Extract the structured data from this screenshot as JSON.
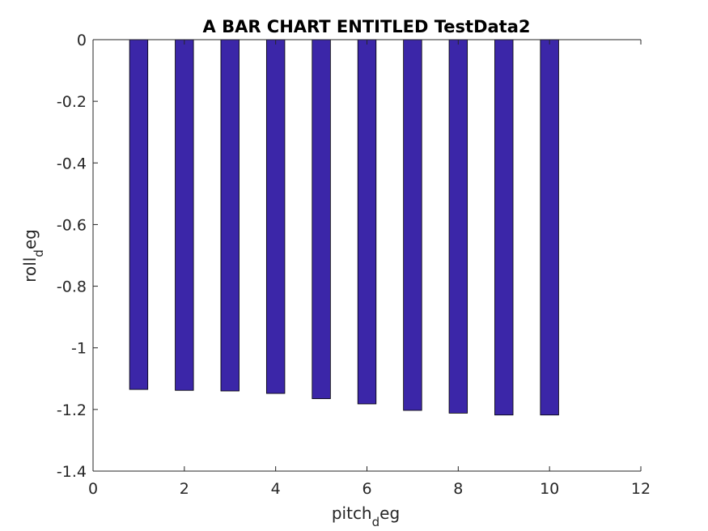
{
  "chart_data": {
    "type": "bar",
    "title": "A BAR CHART ENTITLED TestData2",
    "xlabel": {
      "main": "pitch",
      "sub": "d",
      "rest": "eg"
    },
    "ylabel": {
      "main": "roll",
      "sub": "d",
      "rest": "eg"
    },
    "x": [
      1,
      2,
      3,
      4,
      5,
      6,
      7,
      8,
      9,
      10
    ],
    "values": [
      -1.135,
      -1.138,
      -1.14,
      -1.148,
      -1.165,
      -1.182,
      -1.203,
      -1.212,
      -1.218,
      -1.218
    ],
    "xlim": [
      0,
      12
    ],
    "ylim": [
      -1.4,
      0
    ],
    "xticks": [
      0,
      2,
      4,
      6,
      8,
      10,
      12
    ],
    "yticks": [
      0,
      -0.2,
      -0.4,
      -0.6,
      -0.8,
      -1,
      -1.2,
      -1.4
    ],
    "bar_color": "#3b26a8",
    "grid": false
  }
}
